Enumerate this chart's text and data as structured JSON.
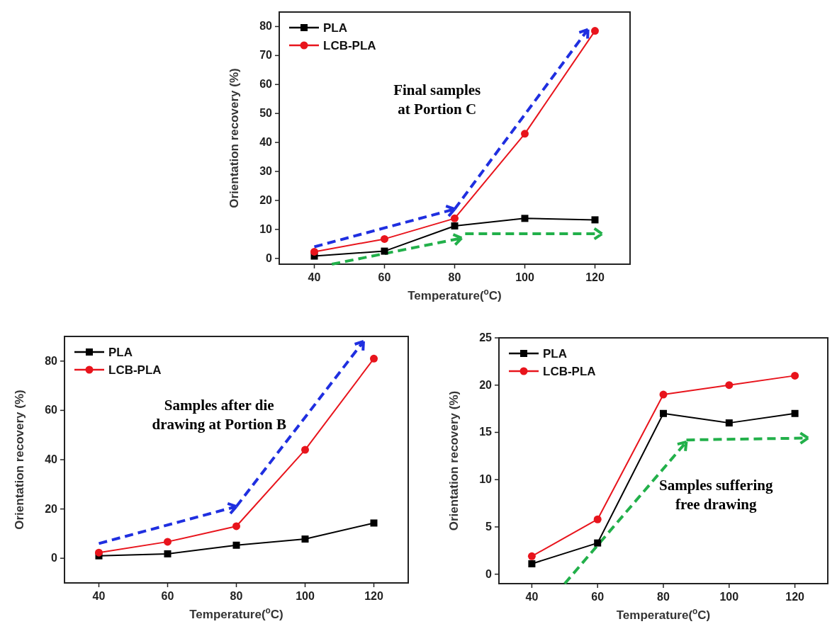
{
  "chart_data": [
    {
      "type": "line",
      "xlabel": "Temperature($^{o}$C)",
      "ylabel": "Orientation recovery (%)",
      "x": [
        40,
        60,
        80,
        100,
        120
      ],
      "xlim": [
        30,
        130
      ],
      "xticks": [
        40,
        60,
        80,
        100,
        120
      ],
      "ylim": [
        -2,
        85
      ],
      "yticks": [
        0,
        10,
        20,
        30,
        40,
        50,
        60,
        70,
        80
      ],
      "legend": "top left",
      "annotations": [
        "Final samples\nat Portion C"
      ],
      "series": [
        {
          "name": "PLA",
          "color": "#000000",
          "marker": "square",
          "values": [
            0.8,
            2.5,
            11.2,
            13.8,
            13.3
          ]
        },
        {
          "name": "LCB-PLA",
          "color": "#e8141c",
          "marker": "circle",
          "values": [
            2.3,
            6.7,
            13.8,
            43,
            78.5
          ]
        }
      ]
    },
    {
      "type": "line",
      "xlabel": "Temperature($^{o}$C)",
      "ylabel": "Orientation recovery (%)",
      "x": [
        40,
        60,
        80,
        100,
        120
      ],
      "xlim": [
        30,
        130
      ],
      "xticks": [
        40,
        60,
        80,
        100,
        120
      ],
      "ylim": [
        -10,
        90
      ],
      "yticks": [
        0,
        20,
        40,
        60,
        80
      ],
      "legend": "top left",
      "annotations": [
        "Samples after die\ndrawing at Portion B"
      ],
      "series": [
        {
          "name": "PLA",
          "color": "#000000",
          "marker": "square",
          "values": [
            1,
            1.8,
            5.3,
            7.8,
            14.3
          ]
        },
        {
          "name": "LCB-PLA",
          "color": "#e8141c",
          "marker": "circle",
          "values": [
            2.3,
            6.7,
            13,
            44,
            81
          ]
        }
      ]
    },
    {
      "type": "line",
      "xlabel": "Temperature($^{o}$C)",
      "ylabel": "Orientation recovery (%)",
      "x": [
        40,
        60,
        80,
        100,
        120
      ],
      "xlim": [
        30,
        130
      ],
      "xticks": [
        40,
        60,
        80,
        100,
        120
      ],
      "ylim": [
        -1,
        25
      ],
      "yticks": [
        0,
        5,
        10,
        15,
        20,
        25
      ],
      "legend": "top left",
      "annotations": [
        "Samples suffering\nfree drawing"
      ],
      "series": [
        {
          "name": "PLA",
          "color": "#000000",
          "marker": "square",
          "values": [
            1.1,
            3.3,
            17,
            16,
            17
          ]
        },
        {
          "name": "LCB-PLA",
          "color": "#e8141c",
          "marker": "circle",
          "values": [
            1.9,
            5.8,
            19,
            20,
            21
          ]
        }
      ]
    }
  ]
}
